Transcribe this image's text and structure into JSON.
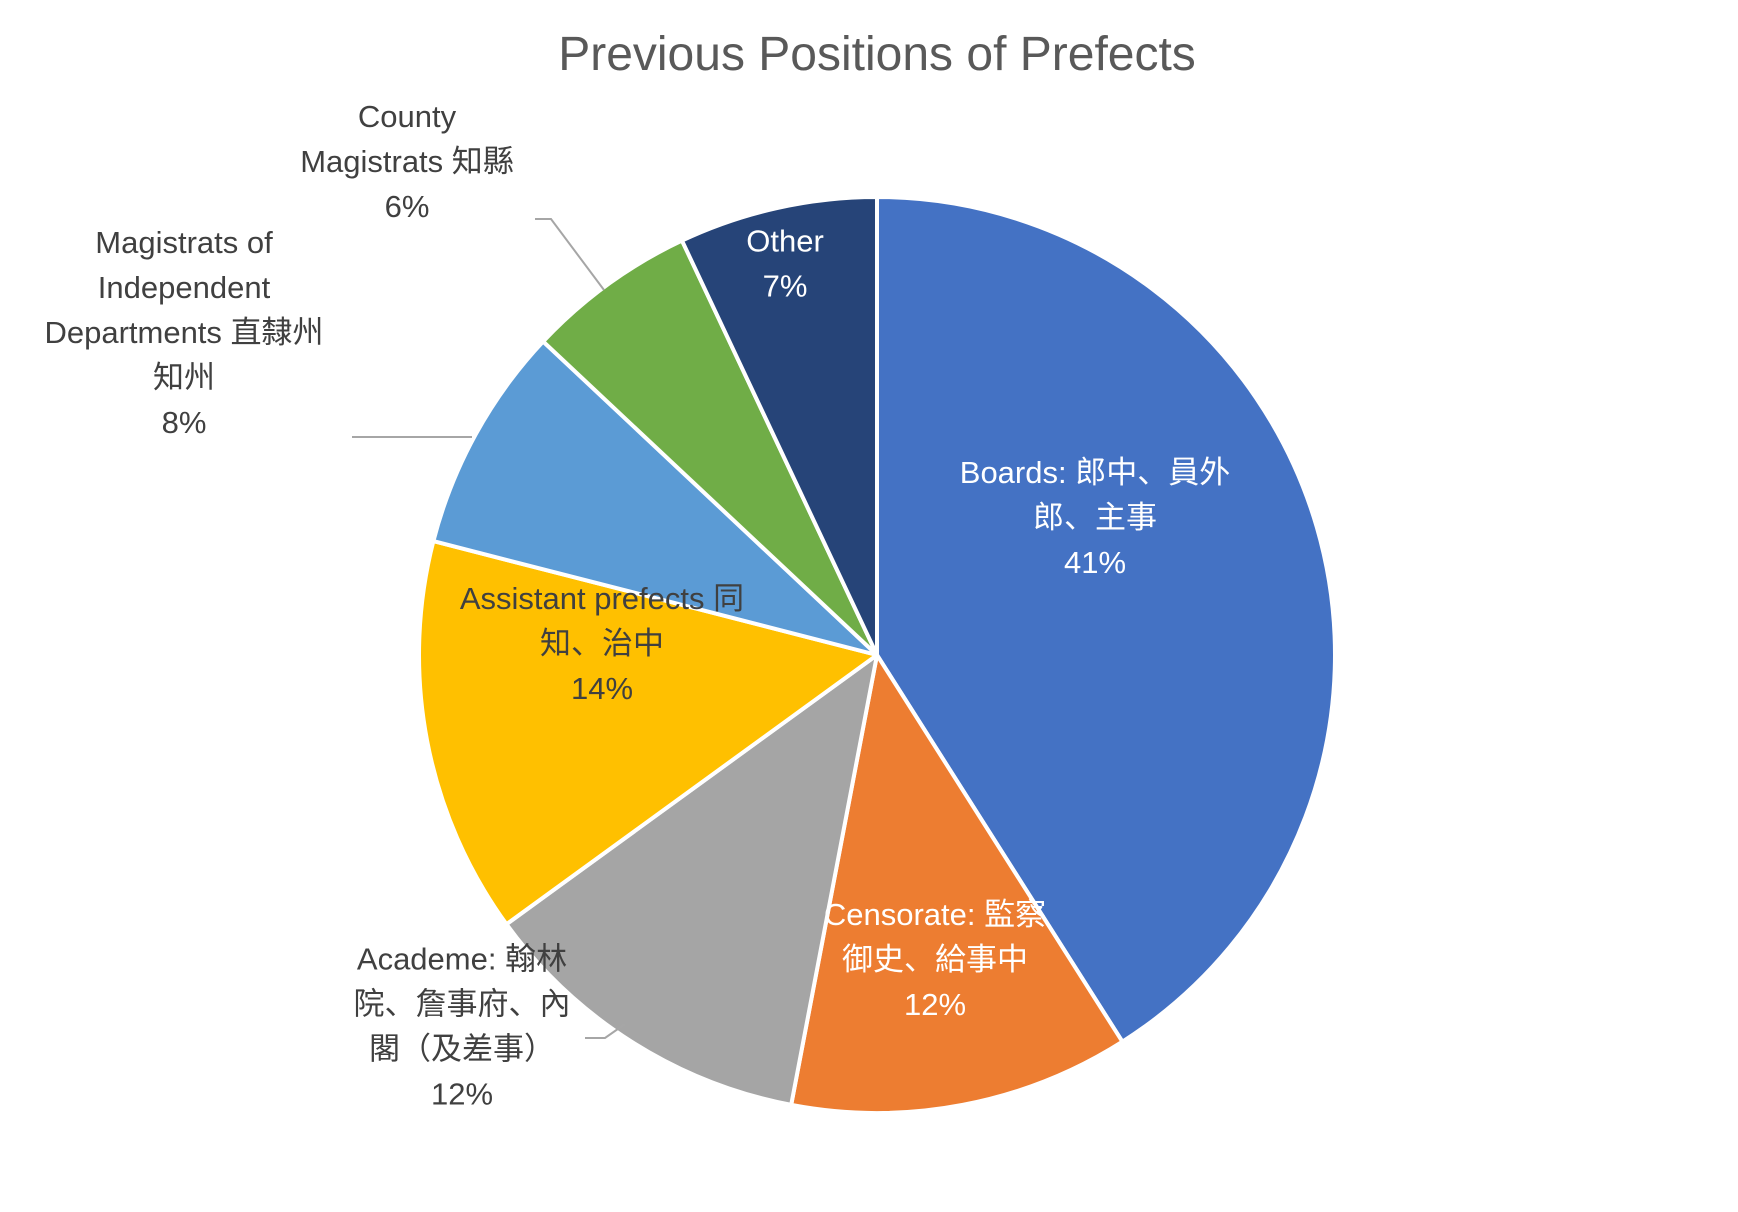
{
  "chart_data": {
    "type": "pie",
    "title": "Previous Positions of Prefects",
    "slices": [
      {
        "name": "Boards",
        "label_lines": [
          "Boards: 郎中、員外",
          "郎、主事"
        ],
        "value": 41,
        "value_label": "41%",
        "color": "#4472C4",
        "label_color": "#ffffff",
        "label_placement": "inside"
      },
      {
        "name": "Censorate",
        "label_lines": [
          "Censorate: 監察",
          "御史、給事中"
        ],
        "value": 12,
        "value_label": "12%",
        "color": "#ED7D31",
        "label_color": "#ffffff",
        "label_placement": "inside"
      },
      {
        "name": "Academe",
        "label_lines": [
          "Academe: 翰林",
          "院、詹事府、內",
          "閣（及差事）"
        ],
        "value": 12,
        "value_label": "12%",
        "color": "#A5A5A5",
        "label_color": "#404040",
        "label_placement": "outside"
      },
      {
        "name": "Assistant prefects",
        "label_lines": [
          "Assistant prefects 同",
          "知、治中"
        ],
        "value": 14,
        "value_label": "14%",
        "color": "#FFC000",
        "label_color": "#404040",
        "label_placement": "inside"
      },
      {
        "name": "Magistrats of Independent Departments",
        "label_lines": [
          "Magistrats of",
          "Independent",
          "Departments 直隸州",
          "知州"
        ],
        "value": 8,
        "value_label": "8%",
        "color": "#5B9BD5",
        "label_color": "#404040",
        "label_placement": "outside"
      },
      {
        "name": "County Magistrats",
        "label_lines": [
          "County",
          "Magistrats 知縣"
        ],
        "value": 6,
        "value_label": "6%",
        "color": "#70AD47",
        "label_color": "#404040",
        "label_placement": "outside"
      },
      {
        "name": "Other",
        "label_lines": [
          "Other"
        ],
        "value": 7,
        "value_label": "7%",
        "color": "#264478",
        "label_color": "#ffffff",
        "label_placement": "inside"
      }
    ],
    "start_angle": "top",
    "direction": "clockwise",
    "legend": "none"
  }
}
